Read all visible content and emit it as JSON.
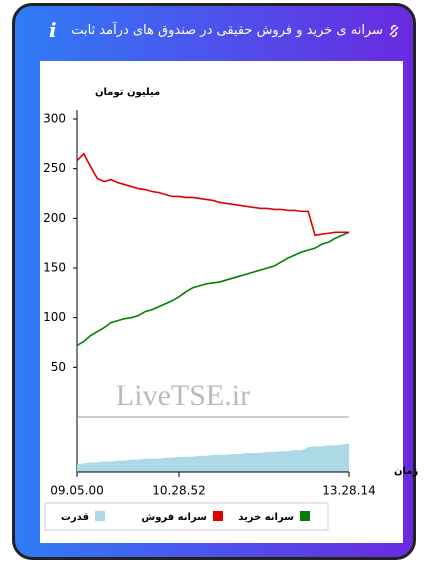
{
  "header": {
    "title": "سرانه ی خرید و فروش حقیقی در صندوق های درآمد ثابت"
  },
  "chart_data": [
    {
      "type": "line",
      "y_label": "میلیون تومان",
      "x_label": "زمان",
      "watermark": "LiveTSE.ir",
      "categories": [
        "09.05.00",
        null,
        null,
        null,
        null,
        null,
        null,
        null,
        null,
        null,
        null,
        null,
        null,
        null,
        null,
        "10.28.52",
        null,
        null,
        null,
        null,
        null,
        null,
        null,
        null,
        null,
        null,
        null,
        null,
        null,
        null,
        null,
        null,
        null,
        null,
        null,
        null,
        null,
        null,
        null,
        null,
        "13.28.14"
      ],
      "series": [
        {
          "name": "سرانه خرید",
          "color": "#008000",
          "values": [
            72,
            76,
            82,
            86,
            90,
            95,
            97,
            99,
            100,
            102,
            106,
            108,
            111,
            114,
            117,
            121,
            126,
            130,
            132,
            134,
            135,
            136,
            138,
            140,
            142,
            144,
            146,
            148,
            150,
            152,
            156,
            160,
            163,
            166,
            168,
            170,
            174,
            176,
            180,
            183,
            186
          ]
        },
        {
          "name": "سرانه فروش",
          "color": "#e00000",
          "values": [
            258,
            265,
            252,
            240,
            237,
            239,
            236,
            234,
            232,
            230,
            229,
            227,
            226,
            224,
            222,
            222,
            221,
            221,
            220,
            219,
            218,
            216,
            215,
            214,
            213,
            212,
            211,
            210,
            210,
            209,
            209,
            208,
            208,
            207,
            207,
            183,
            184,
            185,
            186,
            186,
            186
          ]
        }
      ],
      "ylim": [
        0,
        300
      ],
      "yticks": [
        50,
        100,
        150,
        200,
        250,
        300
      ]
    },
    {
      "type": "area",
      "series": [
        {
          "name": "قدرت",
          "color": "#add8e6",
          "values": [
            8,
            9,
            10,
            10,
            11,
            11,
            12,
            12,
            13,
            13,
            14,
            14,
            14,
            15,
            15,
            16,
            16,
            16,
            17,
            17,
            18,
            18,
            18,
            19,
            19,
            20,
            20,
            20,
            21,
            21,
            22,
            22,
            23,
            23,
            26,
            27,
            27,
            28,
            28,
            29,
            30
          ]
        }
      ],
      "ylim": [
        0,
        60
      ]
    }
  ]
}
